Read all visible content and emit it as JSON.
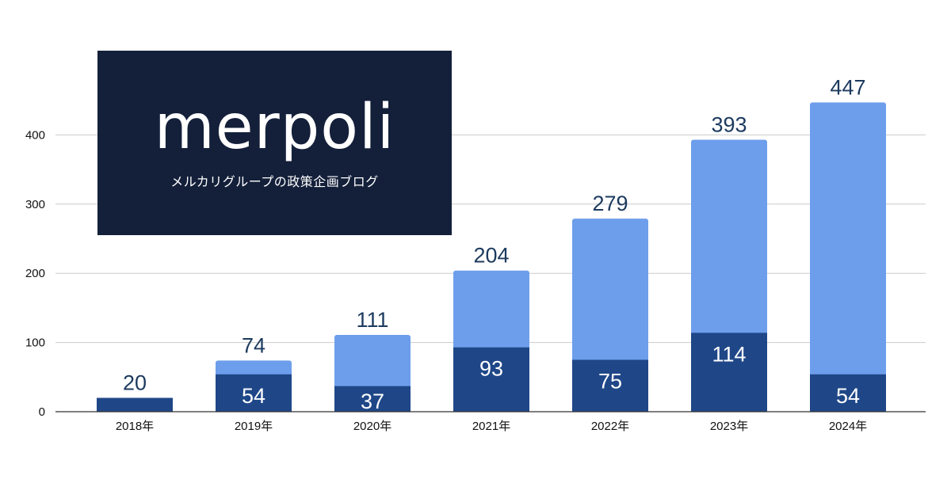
{
  "logo": {
    "wordmark": "merpoli",
    "tagline": "メルカリグループの政策企画ブログ",
    "background": "#14203a"
  },
  "colors": {
    "lower_segment": "#1f4788",
    "upper_segment": "#6d9eeb",
    "total_label": "#1c3a5e",
    "gridline": "#cccccc",
    "axis": "#333333"
  },
  "chart_data": {
    "type": "bar",
    "stacked": true,
    "categories": [
      "2018年",
      "2019年",
      "2020年",
      "2021年",
      "2022年",
      "2023年",
      "2024年"
    ],
    "series": [
      {
        "values": [
          20,
          54,
          37,
          93,
          75,
          114,
          54
        ]
      },
      {
        "values": [
          0,
          20,
          74,
          111,
          204,
          279,
          393
        ]
      }
    ],
    "totals": [
      20,
      74,
      111,
      204,
      279,
      393,
      447
    ],
    "inner_labels_shown": [
      false,
      true,
      true,
      true,
      true,
      true,
      true
    ],
    "ylim": [
      0,
      400
    ],
    "yticks": [
      0,
      100,
      200,
      300,
      400
    ],
    "grid": true,
    "title": "",
    "xlabel": "",
    "ylabel": ""
  }
}
